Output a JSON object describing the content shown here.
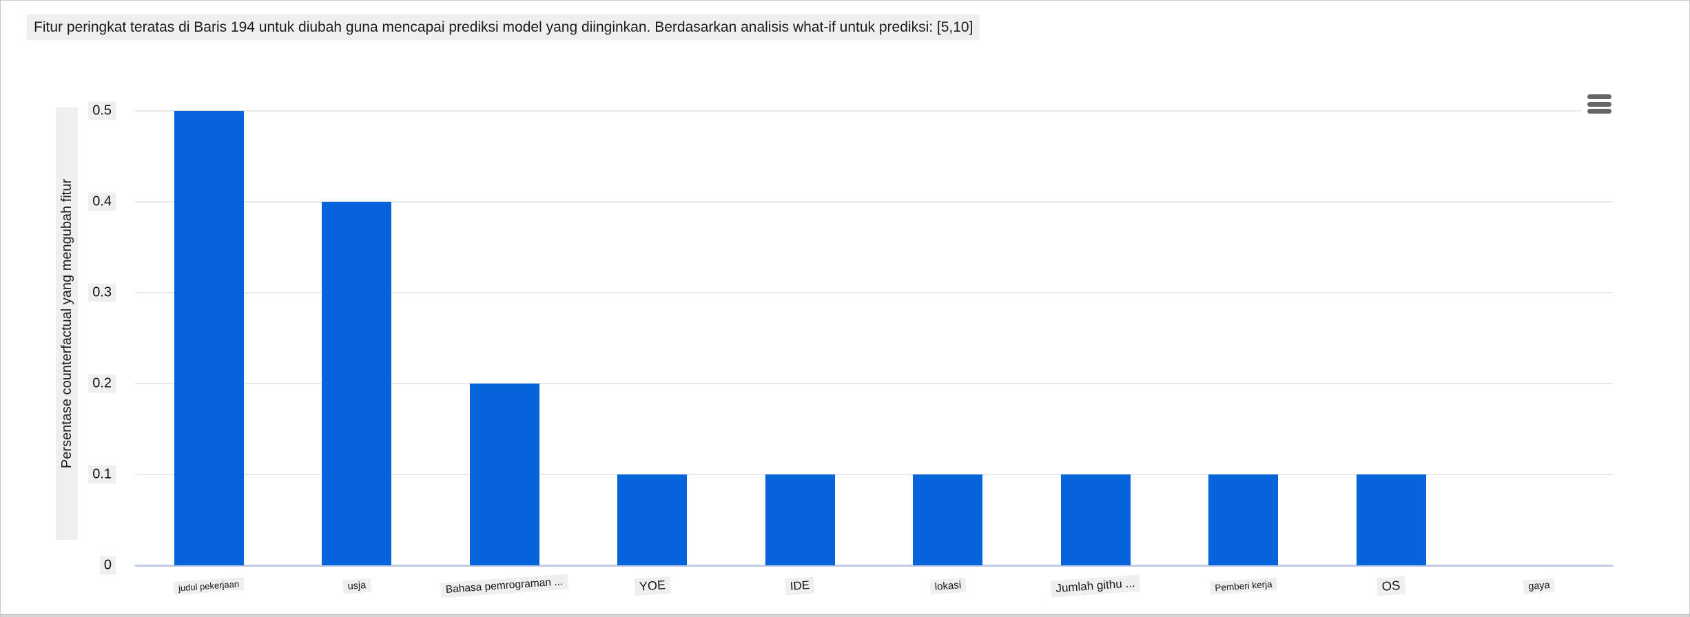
{
  "title": "Fitur peringkat teratas di Baris 194 untuk diubah guna mencapai prediksi model yang diinginkan. Berdasarkan analisis what-if untuk prediksi: [5,10]",
  "menu": {
    "icon": "hamburger-menu-icon"
  },
  "colors": {
    "bar": "#0563db",
    "gridline": "#e8e8e8",
    "axis_line": "#c2cce8",
    "label_background": "#efefef",
    "menu_icon": "#666666"
  },
  "chart_data": {
    "type": "bar",
    "title": "Fitur peringkat teratas di Baris 194 untuk diubah guna mencapai prediksi model yang diinginkan. Berdasarkan analisis what-if untuk prediksi: [5,10]",
    "categories": [
      "judul pekerjaan",
      "usja",
      "Bahasa pemrograman ...",
      "YOE",
      "IDE",
      "lokasi",
      "Jumlah githu ...",
      "Pemberi kerja",
      "OS",
      "gaya"
    ],
    "values": [
      0.5,
      0.4,
      0.2,
      0.1,
      0.1,
      0.1,
      0.1,
      0.1,
      0.1,
      0
    ],
    "xlabel": "",
    "ylabel": "Persentase counterfactual yang mengubah fitur",
    "ylim": [
      0,
      0.5
    ],
    "yticks": [
      0,
      0.1,
      0.2,
      0.3,
      0.4,
      0.5
    ],
    "ytick_labels": [
      "0",
      "0.1",
      "0.2",
      "0.3",
      "0.4",
      "0.5"
    ],
    "grid": true,
    "legend_position": "none",
    "bar_color": "#0563db"
  }
}
